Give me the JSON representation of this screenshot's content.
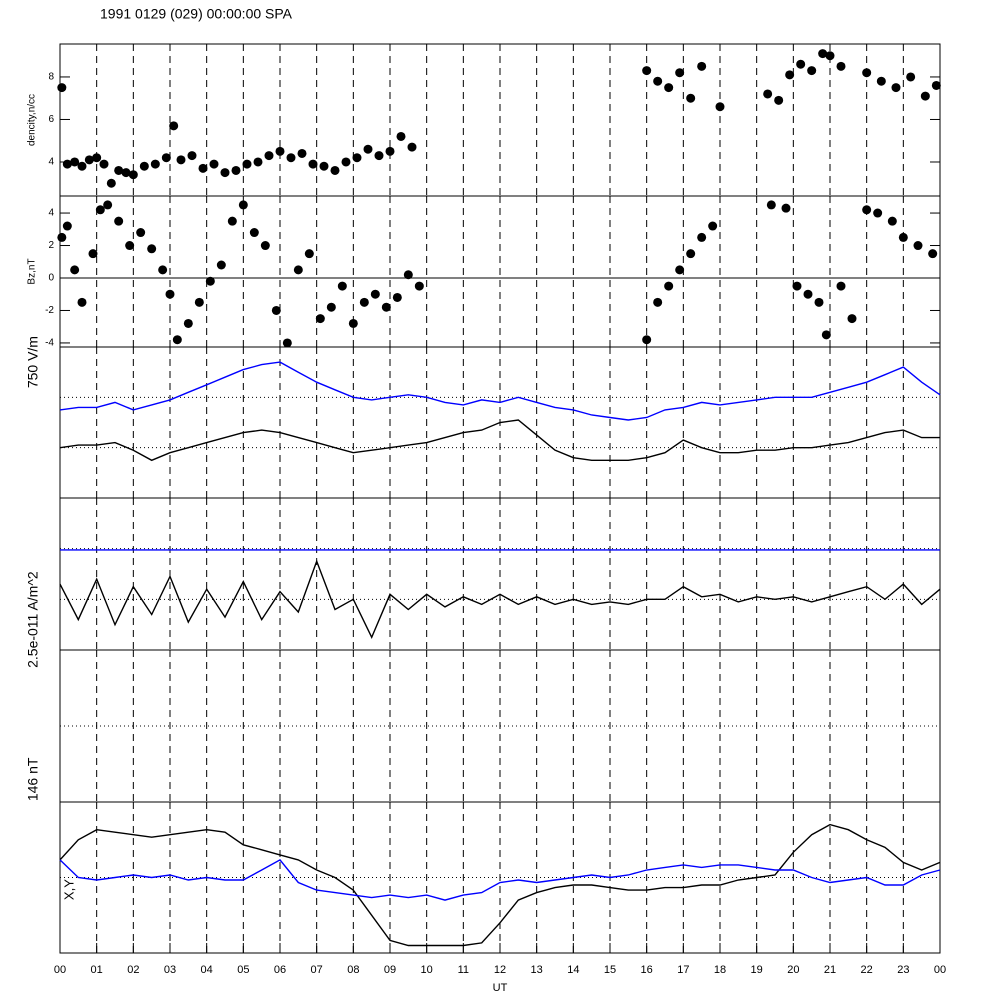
{
  "chart_data": [
    {
      "type": "scatter",
      "title": "1991 0129 (029) 00:00:00 SPA",
      "ylabel": "dencity,n/cc",
      "color": "#000000",
      "xlim": [
        0,
        24
      ],
      "ylim": [
        2.4,
        9.55
      ],
      "yticks": [
        4,
        6,
        8
      ],
      "x": [
        0.05,
        0.2,
        0.4,
        0.6,
        0.8,
        1.0,
        1.2,
        1.4,
        1.6,
        1.8,
        2.0,
        2.3,
        2.6,
        2.9,
        3.1,
        3.3,
        3.6,
        3.9,
        4.2,
        4.5,
        4.8,
        5.1,
        5.4,
        5.7,
        6.0,
        6.3,
        6.6,
        6.9,
        7.2,
        7.5,
        7.8,
        8.1,
        8.4,
        8.7,
        9.0,
        9.3,
        9.6,
        16.0,
        16.3,
        16.6,
        16.9,
        17.2,
        17.5,
        18.0,
        19.3,
        19.6,
        19.9,
        20.2,
        20.5,
        20.8,
        21.0,
        21.3,
        22.0,
        22.4,
        22.8,
        23.2,
        23.6,
        23.9
      ],
      "values": [
        7.5,
        3.9,
        4.0,
        3.8,
        4.1,
        4.2,
        3.9,
        3.0,
        3.6,
        3.5,
        3.4,
        3.8,
        3.9,
        4.2,
        5.7,
        4.1,
        4.3,
        3.7,
        3.9,
        3.5,
        3.6,
        3.9,
        4.0,
        4.3,
        4.5,
        4.2,
        4.4,
        3.9,
        3.8,
        3.6,
        4.0,
        4.2,
        4.6,
        4.3,
        4.5,
        5.2,
        4.7,
        8.3,
        7.8,
        7.5,
        8.2,
        7.0,
        8.5,
        6.6,
        7.2,
        6.9,
        8.1,
        8.6,
        8.3,
        9.1,
        9.0,
        8.5,
        8.2,
        7.8,
        7.5,
        8.0,
        7.1,
        7.6
      ]
    },
    {
      "type": "scatter",
      "ylabel": "Bz,nT",
      "color": "#000000",
      "xlim": [
        0,
        24
      ],
      "ylim": [
        -4.25,
        5.05
      ],
      "yticks": [
        -4,
        -2,
        0,
        2,
        4
      ],
      "x": [
        0.05,
        0.2,
        0.4,
        0.6,
        0.9,
        1.1,
        1.3,
        1.6,
        1.9,
        2.2,
        2.5,
        2.8,
        3.0,
        3.2,
        3.5,
        3.8,
        4.1,
        4.4,
        4.7,
        5.0,
        5.3,
        5.6,
        5.9,
        6.2,
        6.5,
        6.8,
        7.1,
        7.4,
        7.7,
        8.0,
        8.3,
        8.6,
        8.9,
        9.2,
        9.5,
        9.8,
        16.0,
        16.3,
        16.6,
        16.9,
        17.2,
        17.5,
        17.8,
        19.4,
        19.8,
        20.1,
        20.4,
        20.7,
        20.9,
        21.3,
        21.6,
        22.0,
        22.3,
        22.7,
        23.0,
        23.4,
        23.8
      ],
      "values": [
        2.5,
        3.2,
        0.5,
        -1.5,
        1.5,
        4.2,
        4.5,
        3.5,
        2.0,
        2.8,
        1.8,
        0.5,
        -1.0,
        -3.8,
        -2.8,
        -1.5,
        -0.2,
        0.8,
        3.5,
        4.5,
        2.8,
        2.0,
        -2.0,
        -4.0,
        0.5,
        1.5,
        -2.5,
        -1.8,
        -0.5,
        -2.8,
        -1.5,
        -1.0,
        -1.8,
        -1.2,
        0.2,
        -0.5,
        -3.8,
        -1.5,
        -0.5,
        0.5,
        1.5,
        2.5,
        3.2,
        4.5,
        4.3,
        -0.5,
        -1.0,
        -1.5,
        -3.5,
        -0.5,
        -2.5,
        4.2,
        4.0,
        3.5,
        2.5,
        2.0,
        1.5
      ]
    },
    {
      "type": "line",
      "ylabel": "750 V/m",
      "xlim": [
        0,
        24
      ],
      "ylim": [
        -3,
        3
      ],
      "x": [
        0,
        0.5,
        1,
        1.5,
        2,
        2.5,
        3,
        3.5,
        4,
        4.5,
        5,
        5.5,
        6,
        6.5,
        7,
        7.5,
        8,
        8.5,
        9,
        9.5,
        10,
        10.5,
        11,
        11.5,
        12,
        12.5,
        13,
        13.5,
        14,
        14.5,
        15,
        15.5,
        16,
        16.5,
        17,
        17.5,
        18,
        18.5,
        19,
        19.5,
        20,
        20.5,
        21,
        21.5,
        22,
        22.5,
        23,
        23.5,
        24
      ],
      "series": [
        {
          "color": "#0000ff",
          "values": [
            0.5,
            0.6,
            0.6,
            0.8,
            0.5,
            0.7,
            0.9,
            1.2,
            1.5,
            1.8,
            2.1,
            2.3,
            2.4,
            2.0,
            1.6,
            1.3,
            1.0,
            0.9,
            1.0,
            1.1,
            1.0,
            0.8,
            0.7,
            0.9,
            0.8,
            1.0,
            0.8,
            0.6,
            0.5,
            0.3,
            0.2,
            0.1,
            0.2,
            0.5,
            0.6,
            0.8,
            0.7,
            0.8,
            0.9,
            1.0,
            1.0,
            1.0,
            1.2,
            1.4,
            1.6,
            1.9,
            2.2,
            1.6,
            1.1
          ]
        },
        {
          "color": "#000000",
          "values": [
            -1.0,
            -0.9,
            -0.9,
            -0.8,
            -1.1,
            -1.5,
            -1.2,
            -1.0,
            -0.8,
            -0.6,
            -0.4,
            -0.3,
            -0.4,
            -0.6,
            -0.8,
            -1.0,
            -1.2,
            -1.1,
            -1.0,
            -0.9,
            -0.8,
            -0.6,
            -0.4,
            -0.3,
            0.0,
            0.1,
            -0.5,
            -1.1,
            -1.4,
            -1.5,
            -1.5,
            -1.5,
            -1.4,
            -1.2,
            -0.7,
            -1.0,
            -1.2,
            -1.2,
            -1.1,
            -1.1,
            -1.0,
            -1.0,
            -0.9,
            -0.8,
            -0.6,
            -0.4,
            -0.3,
            -0.6,
            -0.6
          ]
        }
      ]
    },
    {
      "type": "line",
      "ylabel": "2.5e-011 A/m^2",
      "xlim": [
        0,
        24
      ],
      "ylim": [
        -3,
        3
      ],
      "x": [
        0,
        0.5,
        1,
        1.5,
        2,
        2.5,
        3,
        3.5,
        4,
        4.5,
        5,
        5.5,
        6,
        6.5,
        7,
        7.5,
        8,
        8.5,
        9,
        9.5,
        10,
        10.5,
        11,
        11.5,
        12,
        12.5,
        13,
        13.5,
        14,
        14.5,
        15,
        15.5,
        16,
        16.5,
        17,
        17.5,
        18,
        18.5,
        19,
        19.5,
        20,
        20.5,
        21,
        21.5,
        22,
        22.5,
        23,
        23.5,
        24
      ],
      "series": [
        {
          "color": "#0000ff",
          "x": [
            0,
            24
          ],
          "values": [
            0.95,
            0.95
          ]
        },
        {
          "color": "#000000",
          "values": [
            -0.4,
            -1.8,
            -0.2,
            -2.0,
            -0.5,
            -1.6,
            -0.1,
            -1.9,
            -0.6,
            -1.7,
            -0.3,
            -1.8,
            -0.7,
            -1.5,
            0.5,
            -1.4,
            -1.0,
            -2.5,
            -0.8,
            -1.4,
            -0.8,
            -1.3,
            -0.9,
            -1.2,
            -0.8,
            -1.2,
            -0.9,
            -1.2,
            -1.0,
            -1.2,
            -1.1,
            -1.2,
            -1.0,
            -1.0,
            -0.5,
            -0.9,
            -0.8,
            -1.1,
            -0.9,
            -1.0,
            -0.9,
            -1.1,
            -0.9,
            -0.7,
            -0.5,
            -1.0,
            -0.4,
            -1.2,
            -0.6
          ]
        }
      ]
    },
    {
      "type": "line",
      "ylabel": "146 nT",
      "annotation": "X,Y",
      "xlabel": "UT",
      "xlim": [
        0,
        24
      ],
      "ylim": [
        -3,
        3
      ],
      "xticks": [
        {
          "value": 0,
          "label": "00"
        },
        {
          "value": 1,
          "label": "01"
        },
        {
          "value": 2,
          "label": "02"
        },
        {
          "value": 3,
          "label": "03"
        },
        {
          "value": 4,
          "label": "04"
        },
        {
          "value": 5,
          "label": "05"
        },
        {
          "value": 6,
          "label": "06"
        },
        {
          "value": 7,
          "label": "07"
        },
        {
          "value": 8,
          "label": "08"
        },
        {
          "value": 9,
          "label": "09"
        },
        10,
        11,
        12,
        13,
        14,
        15,
        16,
        17,
        18,
        19,
        20,
        21,
        22,
        23,
        {
          "value": 24,
          "label": "00"
        }
      ],
      "x": [
        0,
        0.5,
        1,
        1.5,
        2,
        2.5,
        3,
        3.5,
        4,
        4.5,
        5,
        5.5,
        6,
        6.5,
        7,
        7.5,
        8,
        8.5,
        9,
        9.5,
        10,
        10.5,
        11,
        11.5,
        12,
        12.5,
        13,
        13.5,
        14,
        14.5,
        15,
        15.5,
        16,
        16.5,
        17,
        17.5,
        18,
        18.5,
        19,
        19.5,
        20,
        20.5,
        21,
        21.5,
        22,
        22.5,
        23,
        23.5,
        24
      ],
      "series": [
        {
          "color": "#000000",
          "values": [
            0.7,
            1.5,
            1.9,
            1.8,
            1.7,
            1.6,
            1.7,
            1.8,
            1.9,
            1.8,
            1.3,
            1.1,
            0.9,
            0.7,
            0.3,
            0.0,
            -0.5,
            -1.5,
            -2.5,
            -2.7,
            -2.7,
            -2.7,
            -2.7,
            -2.6,
            -1.8,
            -0.9,
            -0.6,
            -0.4,
            -0.3,
            -0.3,
            -0.4,
            -0.5,
            -0.5,
            -0.4,
            -0.4,
            -0.3,
            -0.3,
            -0.1,
            0.0,
            0.1,
            1.0,
            1.7,
            2.1,
            1.9,
            1.5,
            1.2,
            0.6,
            0.3,
            0.6
          ]
        },
        {
          "color": "#0000ff",
          "values": [
            0.7,
            0.0,
            -0.1,
            0.0,
            0.1,
            0.0,
            0.1,
            -0.1,
            0.0,
            -0.1,
            -0.1,
            0.3,
            0.7,
            -0.2,
            -0.5,
            -0.6,
            -0.7,
            -0.8,
            -0.7,
            -0.8,
            -0.7,
            -0.9,
            -0.7,
            -0.6,
            -0.2,
            -0.1,
            -0.2,
            -0.1,
            0.0,
            0.1,
            0.0,
            0.1,
            0.3,
            0.4,
            0.5,
            0.4,
            0.5,
            0.5,
            0.4,
            0.3,
            0.3,
            0.0,
            -0.2,
            -0.1,
            0.0,
            -0.3,
            -0.3,
            0.1,
            0.3
          ]
        }
      ]
    }
  ]
}
